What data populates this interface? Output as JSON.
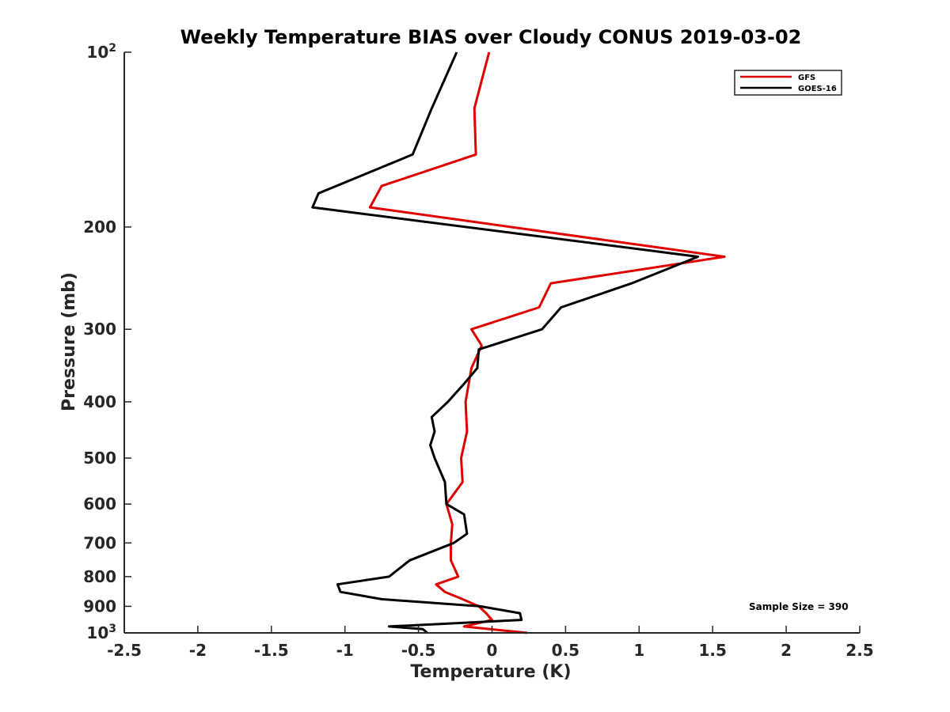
{
  "chart_data": {
    "type": "line",
    "title": "Weekly Temperature BIAS over Cloudy CONUS 2019-03-02",
    "xlabel": "Temperature (K)",
    "ylabel": "Pressure (mb)",
    "xlim": [
      -2.5,
      2.5
    ],
    "ylim": [
      1000,
      100
    ],
    "y_scale": "log",
    "y_reversed": true,
    "grid": false,
    "legend_placement": "top-right",
    "x_ticks": [
      "-2.5",
      "-2",
      "-1.5",
      "-1",
      "-0.5",
      "0",
      "0.5",
      "1",
      "1.5",
      "2",
      "2.5"
    ],
    "y_ticks": [
      {
        "value": 100,
        "base": "10",
        "exp": "2"
      },
      {
        "value": 200,
        "label": "200"
      },
      {
        "value": 300,
        "label": "300"
      },
      {
        "value": 400,
        "label": "400"
      },
      {
        "value": 500,
        "label": "500"
      },
      {
        "value": 600,
        "label": "600"
      },
      {
        "value": 700,
        "label": "700"
      },
      {
        "value": 800,
        "label": "800"
      },
      {
        "value": 900,
        "label": "900"
      },
      {
        "value": 1000,
        "base": "10",
        "exp": "3"
      }
    ],
    "series": [
      {
        "name": "GFS",
        "color": "#e00000",
        "points": [
          {
            "p": 100,
            "t": -0.02
          },
          {
            "p": 125,
            "t": -0.12
          },
          {
            "p": 150,
            "t": -0.11
          },
          {
            "p": 170,
            "t": -0.75
          },
          {
            "p": 185,
            "t": -0.83
          },
          {
            "p": 225,
            "t": 1.58
          },
          {
            "p": 250,
            "t": 0.4
          },
          {
            "p": 275,
            "t": 0.32
          },
          {
            "p": 300,
            "t": -0.14
          },
          {
            "p": 320,
            "t": -0.07
          },
          {
            "p": 350,
            "t": -0.14
          },
          {
            "p": 400,
            "t": -0.18
          },
          {
            "p": 450,
            "t": -0.17
          },
          {
            "p": 500,
            "t": -0.21
          },
          {
            "p": 550,
            "t": -0.2
          },
          {
            "p": 600,
            "t": -0.31
          },
          {
            "p": 650,
            "t": -0.27
          },
          {
            "p": 700,
            "t": -0.28
          },
          {
            "p": 750,
            "t": -0.28
          },
          {
            "p": 800,
            "t": -0.23
          },
          {
            "p": 825,
            "t": -0.38
          },
          {
            "p": 850,
            "t": -0.32
          },
          {
            "p": 875,
            "t": -0.2
          },
          {
            "p": 900,
            "t": -0.09
          },
          {
            "p": 925,
            "t": -0.04
          },
          {
            "p": 950,
            "t": 0.0
          },
          {
            "p": 975,
            "t": -0.19
          },
          {
            "p": 1000,
            "t": 0.24
          }
        ]
      },
      {
        "name": "GOES-16",
        "color": "#000000",
        "points": [
          {
            "p": 100,
            "t": -0.24
          },
          {
            "p": 125,
            "t": -0.41
          },
          {
            "p": 150,
            "t": -0.54
          },
          {
            "p": 175,
            "t": -1.18
          },
          {
            "p": 185,
            "t": -1.22
          },
          {
            "p": 225,
            "t": 1.4
          },
          {
            "p": 250,
            "t": 0.95
          },
          {
            "p": 275,
            "t": 0.47
          },
          {
            "p": 300,
            "t": 0.34
          },
          {
            "p": 325,
            "t": -0.09
          },
          {
            "p": 350,
            "t": -0.1
          },
          {
            "p": 375,
            "t": -0.2
          },
          {
            "p": 400,
            "t": -0.3
          },
          {
            "p": 425,
            "t": -0.41
          },
          {
            "p": 450,
            "t": -0.39
          },
          {
            "p": 475,
            "t": -0.42
          },
          {
            "p": 500,
            "t": -0.39
          },
          {
            "p": 550,
            "t": -0.32
          },
          {
            "p": 600,
            "t": -0.31
          },
          {
            "p": 625,
            "t": -0.19
          },
          {
            "p": 650,
            "t": -0.18
          },
          {
            "p": 675,
            "t": -0.17
          },
          {
            "p": 700,
            "t": -0.26
          },
          {
            "p": 750,
            "t": -0.56
          },
          {
            "p": 800,
            "t": -0.7
          },
          {
            "p": 825,
            "t": -1.05
          },
          {
            "p": 850,
            "t": -1.03
          },
          {
            "p": 875,
            "t": -0.75
          },
          {
            "p": 900,
            "t": -0.08
          },
          {
            "p": 925,
            "t": 0.19
          },
          {
            "p": 950,
            "t": 0.2
          },
          {
            "p": 975,
            "t": -0.7
          },
          {
            "p": 985,
            "t": -0.47
          },
          {
            "p": 1000,
            "t": -0.44
          }
        ]
      }
    ],
    "annotations": [
      "Sample Size = 390"
    ]
  }
}
